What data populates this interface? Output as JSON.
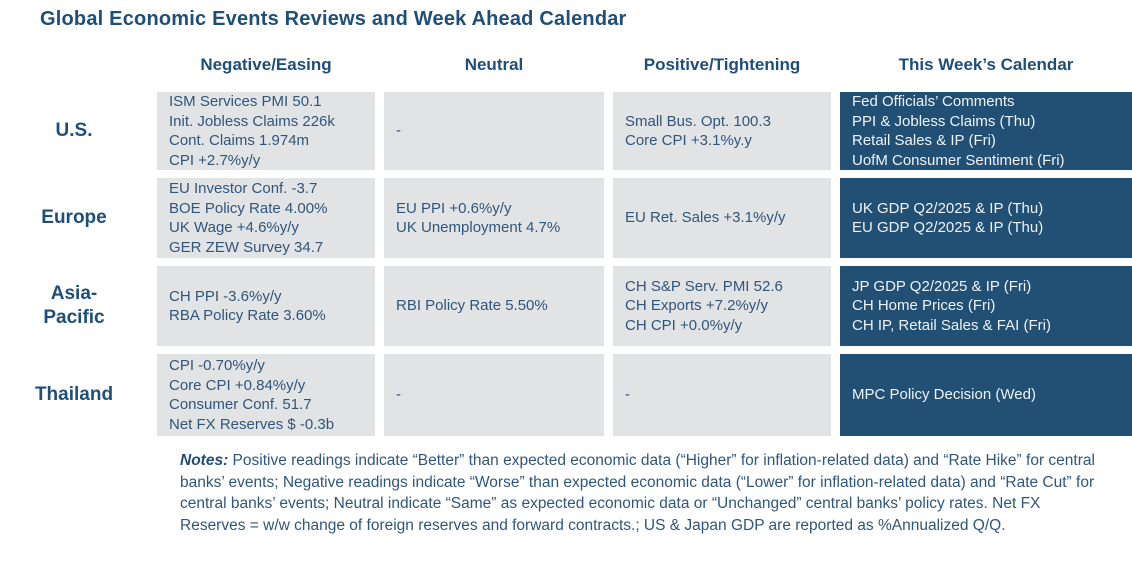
{
  "title": "Global Economic Events Reviews and Week Ahead Calendar",
  "columns": [
    {
      "label": "Negative/Easing"
    },
    {
      "label": "Neutral"
    },
    {
      "label": "Positive/Tightening"
    },
    {
      "label": "This Week’s Calendar"
    }
  ],
  "rows": [
    {
      "region_lines": [
        "U.S."
      ],
      "negative": [
        "ISM Services PMI 50.1",
        "Init. Jobless Claims 226k",
        "Cont. Claims 1.974m",
        "CPI +2.7%y/y"
      ],
      "neutral": [
        "-"
      ],
      "positive": [
        "Small Bus. Opt. 100.3",
        "Core CPI +3.1%y.y"
      ],
      "calendar": [
        "Fed Officials’ Comments",
        "PPI & Jobless Claims (Thu)",
        "Retail Sales & IP (Fri)",
        "UofM Consumer Sentiment (Fri)"
      ]
    },
    {
      "region_lines": [
        "Europe"
      ],
      "negative": [
        "EU Investor Conf. -3.7",
        "BOE Policy Rate 4.00%",
        "UK Wage +4.6%y/y",
        "GER ZEW Survey 34.7"
      ],
      "neutral": [
        "EU PPI +0.6%y/y",
        "UK Unemployment 4.7%"
      ],
      "positive": [
        "EU Ret. Sales +3.1%y/y"
      ],
      "calendar": [
        "UK GDP Q2/2025 & IP (Thu)",
        "EU GDP Q2/2025 & IP (Thu)"
      ]
    },
    {
      "region_lines": [
        "Asia-",
        "Pacific"
      ],
      "negative": [
        "CH PPI -3.6%y/y",
        "RBA Policy Rate 3.60%"
      ],
      "neutral": [
        "RBI Policy Rate 5.50%"
      ],
      "positive": [
        "CH S&P Serv. PMI 52.6",
        "CH Exports +7.2%y/y",
        "CH CPI +0.0%y/y"
      ],
      "calendar": [
        "JP GDP Q2/2025 & IP (Fri)",
        "CH Home Prices (Fri)",
        "CH IP, Retail Sales & FAI (Fri)"
      ]
    },
    {
      "region_lines": [
        "Thailand"
      ],
      "negative": [
        "CPI -0.70%y/y",
        "Core CPI +0.84%y/y",
        "Consumer Conf. 51.7",
        "Net FX Reserves $ -0.3b"
      ],
      "neutral": [
        "-"
      ],
      "positive": [
        "-"
      ],
      "calendar": [
        "MPC Policy Decision (Wed)"
      ]
    }
  ],
  "notes": {
    "label": "Notes:",
    "text": " Positive readings indicate “Better” than expected economic data (“Higher” for inflation-related data) and “Rate Hike” for central banks’ events; Negative readings indicate “Worse” than expected economic data (“Lower” for inflation-related data) and “Rate Cut” for central banks’ events; Neutral indicate “Same” as expected economic data or “Unchanged” central banks’ policy rates. Net FX Reserves = w/w change of foreign reserves and forward contracts.; US & Japan GDP are reported as %Annualized Q/Q."
  },
  "colors": {
    "heading_blue": "#1f4e79",
    "body_blue": "#2f567c",
    "cell_gray": "#e2e3e5",
    "calendar_blue": "#224f74",
    "calendar_text": "#eef3f7"
  }
}
